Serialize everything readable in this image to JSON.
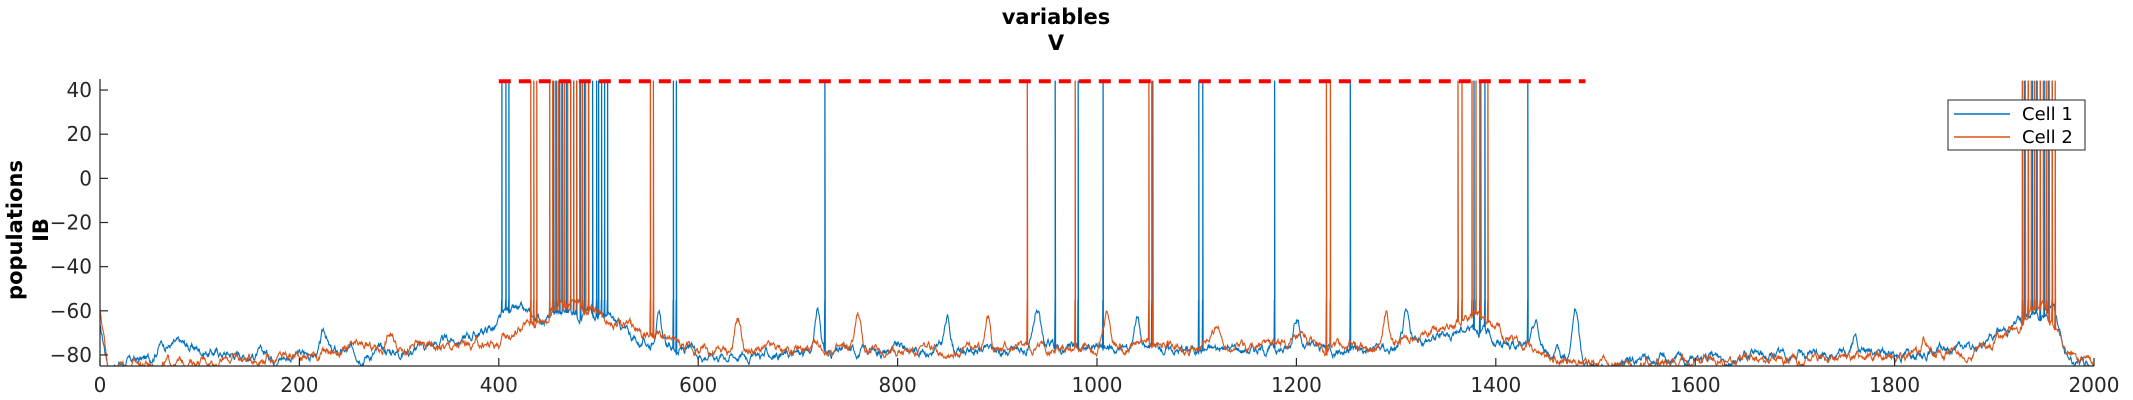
{
  "chart_data": {
    "type": "line",
    "title": "variables",
    "subtitle": "V",
    "ylabel_lines": [
      "populations",
      "IB"
    ],
    "xlabel": "",
    "xlim": [
      0,
      2000
    ],
    "ylim": [
      -85,
      45
    ],
    "xticks": [
      "0",
      "200",
      "400",
      "600",
      "800",
      "1000",
      "1200",
      "1400",
      "1600",
      "1800",
      "2000"
    ],
    "yticks": [
      "-80",
      "-60",
      "-40",
      "-20",
      "0",
      "20",
      "40"
    ],
    "grid": false,
    "legend_position": "top-right",
    "reference_line": {
      "y": 44,
      "x_start": 400,
      "x_end": 1490,
      "color": "#ff0000",
      "style": "dashed"
    },
    "series": [
      {
        "name": "Cell 1",
        "color": "#0072bd",
        "baseline": [
          [
            0,
            -68
          ],
          [
            8,
            -84
          ],
          [
            50,
            -82
          ],
          [
            60,
            -74
          ],
          [
            120,
            -79
          ],
          [
            200,
            -80
          ],
          [
            300,
            -78
          ],
          [
            360,
            -73
          ],
          [
            398,
            -67
          ],
          [
            410,
            -60
          ],
          [
            440,
            -64
          ],
          [
            470,
            -60
          ],
          [
            500,
            -60
          ],
          [
            540,
            -74
          ],
          [
            600,
            -79
          ],
          [
            700,
            -80
          ],
          [
            800,
            -77
          ],
          [
            900,
            -78
          ],
          [
            1000,
            -77
          ],
          [
            1100,
            -77
          ],
          [
            1200,
            -77
          ],
          [
            1300,
            -77
          ],
          [
            1380,
            -66
          ],
          [
            1400,
            -74
          ],
          [
            1440,
            -77
          ],
          [
            1490,
            -84
          ],
          [
            1600,
            -82
          ],
          [
            1700,
            -80
          ],
          [
            1800,
            -79
          ],
          [
            1880,
            -77
          ],
          [
            1920,
            -66
          ],
          [
            1960,
            -57
          ],
          [
            1972,
            -82
          ],
          [
            2000,
            -84
          ]
        ],
        "spikes": [
          403,
          407,
          410,
          455,
          458,
          461,
          464,
          468,
          472,
          475,
          478,
          482,
          486,
          490,
          494,
          498,
          500,
          503,
          506,
          509,
          575,
          578,
          727,
          958,
          981,
          1006,
          1055,
          1102,
          1106,
          1178,
          1254,
          1378,
          1384,
          1389,
          1432,
          1930,
          1934,
          1938,
          1942,
          1946,
          1950,
          1954,
          1958
        ],
        "bumps": [
          [
            60,
            -74
          ],
          [
            225,
            -70
          ],
          [
            390,
            -68
          ],
          [
            560,
            -61
          ],
          [
            720,
            -60
          ],
          [
            850,
            -64
          ],
          [
            940,
            -60
          ],
          [
            1040,
            -61
          ],
          [
            1200,
            -61
          ],
          [
            1310,
            -63
          ],
          [
            1440,
            -66
          ],
          [
            1480,
            -60
          ],
          [
            1760,
            -73
          ]
        ]
      },
      {
        "name": "Cell 2",
        "color": "#d95319",
        "baseline": [
          [
            0,
            -60
          ],
          [
            8,
            -84
          ],
          [
            60,
            -84
          ],
          [
            120,
            -82
          ],
          [
            200,
            -80
          ],
          [
            300,
            -76
          ],
          [
            360,
            -76
          ],
          [
            398,
            -75
          ],
          [
            420,
            -68
          ],
          [
            450,
            -62
          ],
          [
            470,
            -56
          ],
          [
            500,
            -60
          ],
          [
            540,
            -70
          ],
          [
            600,
            -78
          ],
          [
            700,
            -78
          ],
          [
            800,
            -78
          ],
          [
            900,
            -77
          ],
          [
            1000,
            -76
          ],
          [
            1100,
            -75
          ],
          [
            1200,
            -76
          ],
          [
            1300,
            -76
          ],
          [
            1380,
            -60
          ],
          [
            1400,
            -70
          ],
          [
            1450,
            -80
          ],
          [
            1490,
            -84
          ],
          [
            1600,
            -84
          ],
          [
            1700,
            -82
          ],
          [
            1800,
            -80
          ],
          [
            1880,
            -78
          ],
          [
            1920,
            -70
          ],
          [
            1950,
            -58
          ],
          [
            1972,
            -80
          ],
          [
            2000,
            -82
          ]
        ],
        "spikes": [
          432,
          435,
          438,
          451,
          454,
          457,
          460,
          463,
          466,
          469,
          472,
          475,
          478,
          481,
          484,
          487,
          490,
          552,
          555,
          930,
          978,
          1052,
          1056,
          1230,
          1234,
          1362,
          1366,
          1376,
          1380,
          1385,
          1392,
          1928,
          1931,
          1934,
          1937,
          1940,
          1943,
          1946,
          1949,
          1952,
          1955,
          1958,
          1961
        ],
        "bumps": [
          [
            290,
            -70
          ],
          [
            460,
            -55
          ],
          [
            530,
            -64
          ],
          [
            640,
            -64
          ],
          [
            760,
            -62
          ],
          [
            890,
            -62
          ],
          [
            1010,
            -62
          ],
          [
            1120,
            -66
          ],
          [
            1290,
            -60
          ],
          [
            1340,
            -66
          ],
          [
            1830,
            -72
          ]
        ]
      }
    ]
  }
}
